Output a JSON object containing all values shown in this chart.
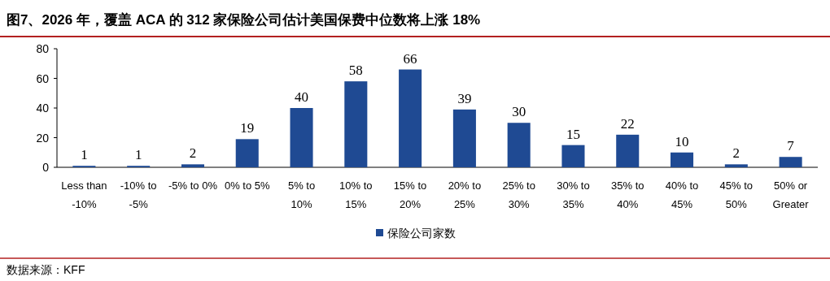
{
  "chart_data": {
    "type": "bar",
    "title": "图7、2026 年，覆盖 ACA 的 312 家保险公司估计美国保费中位数将上涨 18%",
    "categories": [
      "Less than -10%",
      "-10% to -5%",
      "-5% to 0%",
      "0% to 5%",
      "5% to 10%",
      "10% to 15%",
      "15% to 20%",
      "20% to 25%",
      "25% to 30%",
      "30% to 35%",
      "35% to 40%",
      "40% to 45%",
      "45% to 50%",
      "50% or Greater"
    ],
    "series": [
      {
        "name": "保险公司家数",
        "color": "#1f4a93",
        "values": [
          1,
          1,
          2,
          19,
          40,
          58,
          66,
          39,
          30,
          15,
          22,
          10,
          2,
          7
        ]
      }
    ],
    "ylim": [
      0,
      80
    ],
    "yticks": [
      0,
      20,
      40,
      60,
      80
    ],
    "data_labels": true,
    "legend": "bottom",
    "grid": false,
    "annotations": [
      "数据来源：KFF"
    ]
  }
}
